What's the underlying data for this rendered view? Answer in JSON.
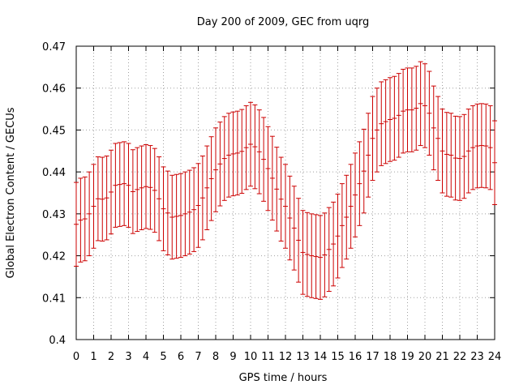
{
  "chart_data": {
    "type": "errorbar",
    "title": "Day 200 of 2009, GEC from uqrg",
    "xlabel": "GPS time / hours",
    "ylabel": "Global Electron Content / GECUs",
    "xlim": [
      0,
      24
    ],
    "ylim": [
      0.4,
      0.47
    ],
    "grid": true,
    "x_ticks": [
      "0",
      "1",
      "2",
      "3",
      "4",
      "5",
      "6",
      "7",
      "8",
      "9",
      "10",
      "11",
      "12",
      "13",
      "14",
      "15",
      "16",
      "17",
      "18",
      "19",
      "20",
      "21",
      "22",
      "23",
      "24"
    ],
    "y_ticks": [
      "0.4",
      "0.41",
      "0.42",
      "0.43",
      "0.44",
      "0.45",
      "0.46",
      "0.47"
    ],
    "series_color": "#cc0000",
    "error": 0.01,
    "series": [
      {
        "name": "GEC",
        "x": [
          0,
          0.25,
          0.5,
          0.75,
          1,
          1.25,
          1.5,
          1.75,
          2,
          2.25,
          2.5,
          2.75,
          3,
          3.25,
          3.5,
          3.75,
          4,
          4.25,
          4.5,
          4.75,
          5,
          5.25,
          5.5,
          5.75,
          6,
          6.25,
          6.5,
          6.75,
          7,
          7.25,
          7.5,
          7.75,
          8,
          8.25,
          8.5,
          8.75,
          9,
          9.25,
          9.5,
          9.75,
          10,
          10.25,
          10.5,
          10.75,
          11,
          11.25,
          11.5,
          11.75,
          12,
          12.25,
          12.5,
          12.75,
          13,
          13.25,
          13.5,
          13.75,
          14,
          14.25,
          14.5,
          14.75,
          15,
          15.25,
          15.5,
          15.75,
          16,
          16.25,
          16.5,
          16.75,
          17,
          17.25,
          17.5,
          17.75,
          18,
          18.25,
          18.5,
          18.75,
          19,
          19.25,
          19.5,
          19.75,
          20,
          20.25,
          20.5,
          20.75,
          21,
          21.25,
          21.5,
          21.75,
          22,
          22.25,
          22.5,
          22.75,
          23,
          23.25,
          23.5,
          23.75,
          24
        ],
        "values": [
          0.4275,
          0.4285,
          0.4288,
          0.43,
          0.4318,
          0.4336,
          0.4335,
          0.4338,
          0.4352,
          0.4368,
          0.437,
          0.4372,
          0.4368,
          0.4353,
          0.4358,
          0.4362,
          0.4365,
          0.4363,
          0.4356,
          0.4336,
          0.4312,
          0.4302,
          0.4292,
          0.4294,
          0.4296,
          0.43,
          0.4304,
          0.431,
          0.432,
          0.4338,
          0.4362,
          0.4384,
          0.4405,
          0.4419,
          0.4432,
          0.444,
          0.4443,
          0.4445,
          0.4449,
          0.4458,
          0.4466,
          0.446,
          0.4448,
          0.443,
          0.4408,
          0.4385,
          0.4359,
          0.4335,
          0.4318,
          0.429,
          0.4266,
          0.4237,
          0.4208,
          0.4203,
          0.42,
          0.4198,
          0.4196,
          0.4202,
          0.4215,
          0.4228,
          0.4247,
          0.4272,
          0.4292,
          0.4318,
          0.4345,
          0.4372,
          0.4402,
          0.444,
          0.448,
          0.45,
          0.4515,
          0.452,
          0.4525,
          0.4528,
          0.4535,
          0.4545,
          0.4548,
          0.4548,
          0.4552,
          0.4563,
          0.4558,
          0.454,
          0.4505,
          0.448,
          0.445,
          0.4442,
          0.444,
          0.4433,
          0.4432,
          0.4437,
          0.445,
          0.4458,
          0.4462,
          0.4463,
          0.4462,
          0.4458,
          0.4422
        ]
      }
    ]
  }
}
